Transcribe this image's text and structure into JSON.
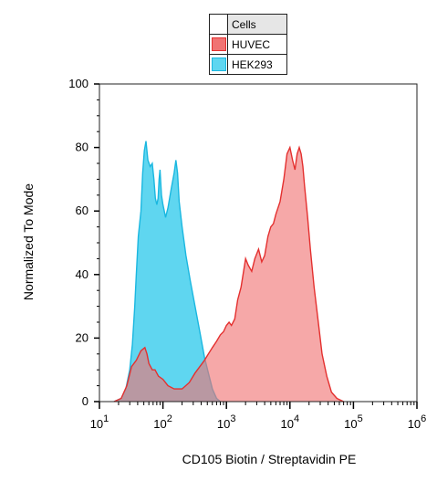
{
  "chart_data": {
    "type": "area",
    "xlabel": "CD105 Biotin / Streptavidin PE",
    "ylabel": "Normalized To Mode",
    "x_scale": "log",
    "xlim": [
      10,
      1000000
    ],
    "ylim": [
      0,
      100
    ],
    "x_ticks": [
      {
        "value": 10,
        "base": "10",
        "exp": "1"
      },
      {
        "value": 100,
        "base": "10",
        "exp": "2"
      },
      {
        "value": 1000,
        "base": "10",
        "exp": "3"
      },
      {
        "value": 10000,
        "base": "10",
        "exp": "4"
      },
      {
        "value": 100000,
        "base": "10",
        "exp": "5"
      },
      {
        "value": 1000000,
        "base": "10",
        "exp": "6"
      }
    ],
    "y_ticks": [
      "0",
      "20",
      "40",
      "60",
      "80",
      "100"
    ],
    "legend_title": "Cells",
    "legend_position": "top",
    "series": [
      {
        "name": "HEK293",
        "fill": "#5fd6f0",
        "stroke": "#1ab7e0",
        "points": [
          [
            17,
            0
          ],
          [
            22,
            1
          ],
          [
            26,
            4
          ],
          [
            30,
            10
          ],
          [
            33,
            18
          ],
          [
            36,
            30
          ],
          [
            38,
            40
          ],
          [
            41,
            52
          ],
          [
            45,
            60
          ],
          [
            48,
            72
          ],
          [
            51,
            79
          ],
          [
            54,
            82
          ],
          [
            58,
            76
          ],
          [
            63,
            74
          ],
          [
            68,
            75
          ],
          [
            72,
            70
          ],
          [
            76,
            64
          ],
          [
            80,
            62
          ],
          [
            84,
            64
          ],
          [
            87,
            70
          ],
          [
            90,
            73
          ],
          [
            95,
            65
          ],
          [
            100,
            62
          ],
          [
            110,
            58
          ],
          [
            120,
            61
          ],
          [
            135,
            67
          ],
          [
            150,
            72
          ],
          [
            160,
            76
          ],
          [
            170,
            72
          ],
          [
            180,
            63
          ],
          [
            200,
            55
          ],
          [
            230,
            46
          ],
          [
            270,
            38
          ],
          [
            320,
            30
          ],
          [
            380,
            22
          ],
          [
            450,
            14
          ],
          [
            520,
            9
          ],
          [
            600,
            4
          ],
          [
            700,
            1
          ],
          [
            800,
            0
          ]
        ]
      },
      {
        "name": "HUVEC",
        "fill": "#f07373",
        "stroke": "#e4302f",
        "points": [
          [
            17,
            0
          ],
          [
            22,
            1
          ],
          [
            27,
            5
          ],
          [
            32,
            11
          ],
          [
            38,
            13
          ],
          [
            45,
            16
          ],
          [
            52,
            17
          ],
          [
            56,
            15
          ],
          [
            60,
            12
          ],
          [
            68,
            10
          ],
          [
            75,
            10
          ],
          [
            85,
            8
          ],
          [
            100,
            7
          ],
          [
            120,
            5
          ],
          [
            150,
            4
          ],
          [
            200,
            4
          ],
          [
            260,
            6
          ],
          [
            320,
            9
          ],
          [
            380,
            11
          ],
          [
            450,
            13
          ],
          [
            520,
            15
          ],
          [
            600,
            17
          ],
          [
            700,
            19
          ],
          [
            800,
            21
          ],
          [
            900,
            22
          ],
          [
            1000,
            24
          ],
          [
            1100,
            25
          ],
          [
            1200,
            24
          ],
          [
            1350,
            26
          ],
          [
            1500,
            32
          ],
          [
            1700,
            36
          ],
          [
            2000,
            45
          ],
          [
            2200,
            43
          ],
          [
            2500,
            41
          ],
          [
            2800,
            45
          ],
          [
            3200,
            48
          ],
          [
            3600,
            44
          ],
          [
            4000,
            46
          ],
          [
            4500,
            52
          ],
          [
            5000,
            55
          ],
          [
            5500,
            56
          ],
          [
            6000,
            59
          ],
          [
            7000,
            63
          ],
          [
            8000,
            70
          ],
          [
            9000,
            78
          ],
          [
            10000,
            80
          ],
          [
            11000,
            76
          ],
          [
            12000,
            73
          ],
          [
            13000,
            78
          ],
          [
            14000,
            80
          ],
          [
            15000,
            78
          ],
          [
            16000,
            74
          ],
          [
            17000,
            68
          ],
          [
            19000,
            58
          ],
          [
            21000,
            48
          ],
          [
            24000,
            36
          ],
          [
            28000,
            25
          ],
          [
            32000,
            15
          ],
          [
            38000,
            8
          ],
          [
            45000,
            3
          ],
          [
            55000,
            1
          ],
          [
            70000,
            0
          ]
        ]
      }
    ]
  }
}
